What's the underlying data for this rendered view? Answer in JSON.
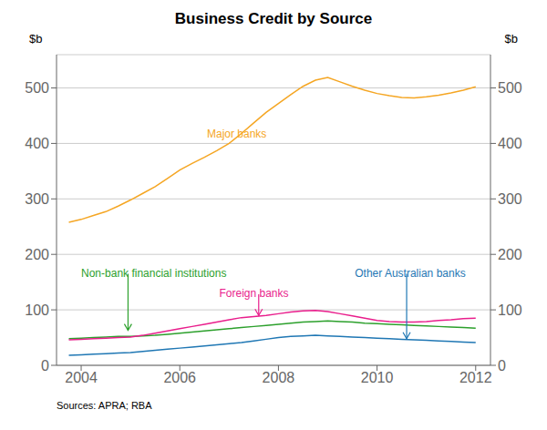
{
  "chart_data": {
    "type": "line",
    "title": "Business Credit by Source",
    "ylabel": "$b",
    "y2label": "$b",
    "source": "Sources: APRA; RBA",
    "x": [
      2003.75,
      2004.0,
      2004.25,
      2004.5,
      2004.75,
      2005.0,
      2005.25,
      2005.5,
      2005.75,
      2006.0,
      2006.25,
      2006.5,
      2006.75,
      2007.0,
      2007.25,
      2007.5,
      2007.75,
      2008.0,
      2008.25,
      2008.5,
      2008.75,
      2009.0,
      2009.25,
      2009.5,
      2009.75,
      2010.0,
      2010.25,
      2010.5,
      2010.75,
      2011.0,
      2011.25,
      2011.5,
      2011.75,
      2012.0
    ],
    "xlim": [
      2003.5,
      2012.3
    ],
    "xticks": [
      2004,
      2006,
      2008,
      2010,
      2012
    ],
    "ylim": [
      0,
      560
    ],
    "yticks": [
      0,
      100,
      200,
      300,
      400,
      500
    ],
    "y2lim": [
      0,
      560
    ],
    "y2ticks": [
      0,
      100,
      200,
      300,
      400,
      500
    ],
    "grid": true,
    "series": [
      {
        "name": "Major banks",
        "color": "#F5A623",
        "values": [
          258,
          263,
          270,
          277,
          287,
          298,
          310,
          322,
          337,
          352,
          364,
          375,
          387,
          400,
          418,
          437,
          456,
          472,
          488,
          503,
          514,
          519,
          511,
          503,
          496,
          490,
          486,
          483,
          482,
          484,
          487,
          491,
          496,
          502
        ]
      },
      {
        "name": "Non-bank financial institutions",
        "color": "#2CA02C",
        "values": [
          48,
          49,
          50,
          51,
          52,
          52,
          53,
          54,
          56,
          58,
          60,
          62,
          64,
          66,
          68,
          70,
          72,
          74,
          76,
          78,
          79,
          80,
          79,
          78,
          76,
          75,
          74,
          73,
          72,
          71,
          70,
          69,
          68,
          67
        ]
      },
      {
        "name": "Foreign banks",
        "color": "#E91E8C",
        "values": [
          46,
          47,
          48,
          49,
          50,
          51,
          54,
          58,
          62,
          66,
          70,
          74,
          78,
          82,
          86,
          88,
          90,
          93,
          96,
          98,
          99,
          97,
          93,
          89,
          85,
          81,
          79,
          78,
          78,
          79,
          81,
          82,
          84,
          85
        ]
      },
      {
        "name": "Other Australian banks",
        "color": "#1F77B4",
        "values": [
          18,
          19,
          20,
          21,
          22,
          23,
          25,
          27,
          29,
          31,
          33,
          35,
          37,
          39,
          41,
          44,
          47,
          50,
          52,
          53,
          54,
          53,
          52,
          51,
          50,
          49,
          48,
          47,
          46,
          45,
          44,
          43,
          42,
          41
        ]
      }
    ],
    "annotations": [
      {
        "text": "Major banks",
        "x": 2006.55,
        "y": 415,
        "color": "#F5A623"
      },
      {
        "text": "Non-bank financial institutions",
        "x": 2004.0,
        "y": 173,
        "color": "#2CA02C",
        "arrow_from": [
          2004.95,
          165
        ],
        "arrow_to": [
          2004.95,
          63
        ]
      },
      {
        "text": "Foreign banks",
        "x": 2006.8,
        "y": 138,
        "color": "#E91E8C",
        "arrow_from": [
          2007.6,
          128
        ],
        "arrow_to": [
          2007.6,
          90
        ]
      },
      {
        "text": "Other Australian banks",
        "x": 2009.55,
        "y": 173,
        "color": "#1F77B4",
        "arrow_from": [
          2010.6,
          165
        ],
        "arrow_to": [
          2010.6,
          48
        ]
      }
    ]
  }
}
